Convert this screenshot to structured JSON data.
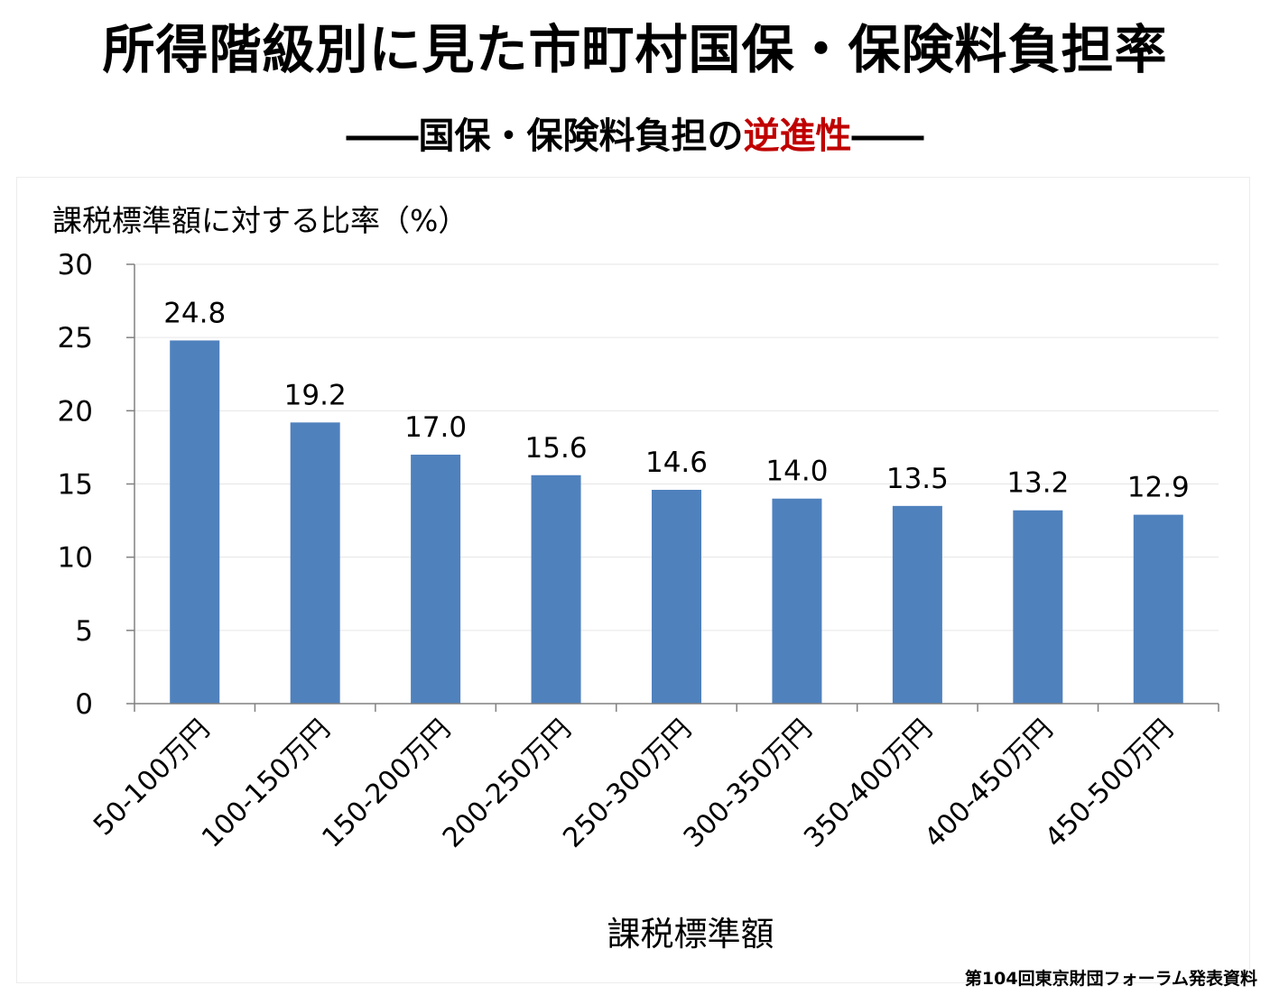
{
  "header": {
    "title": "所得階級別に見た市町村国保・保険料負担率",
    "subtitle_before": "――国保・保険料負担の",
    "subtitle_accent": "逆進性",
    "subtitle_after": "――"
  },
  "footer": {
    "source": "第104回東京財団フォーラム発表資料"
  },
  "colors": {
    "bar": "#4f81bd",
    "accent": "#c00000",
    "grid": "#e6e6e6",
    "axis": "#808080"
  },
  "chart_data": {
    "type": "bar",
    "ylabel": "課税標準額に対する比率（%）",
    "xlabel": "課税標準額",
    "ylim": [
      0,
      30
    ],
    "yticks": [
      0,
      5,
      10,
      15,
      20,
      25,
      30
    ],
    "grid": true,
    "categories": [
      "50-100万円",
      "100-150万円",
      "150-200万円",
      "200-250万円",
      "250-300万円",
      "300-350万円",
      "350-400万円",
      "400-450万円",
      "450-500万円"
    ],
    "values": [
      24.8,
      19.2,
      17.0,
      15.6,
      14.6,
      14.0,
      13.5,
      13.2,
      12.9
    ],
    "value_labels": [
      "24.8",
      "19.2",
      "17.0",
      "15.6",
      "14.6",
      "14.0",
      "13.5",
      "13.2",
      "12.9"
    ]
  }
}
